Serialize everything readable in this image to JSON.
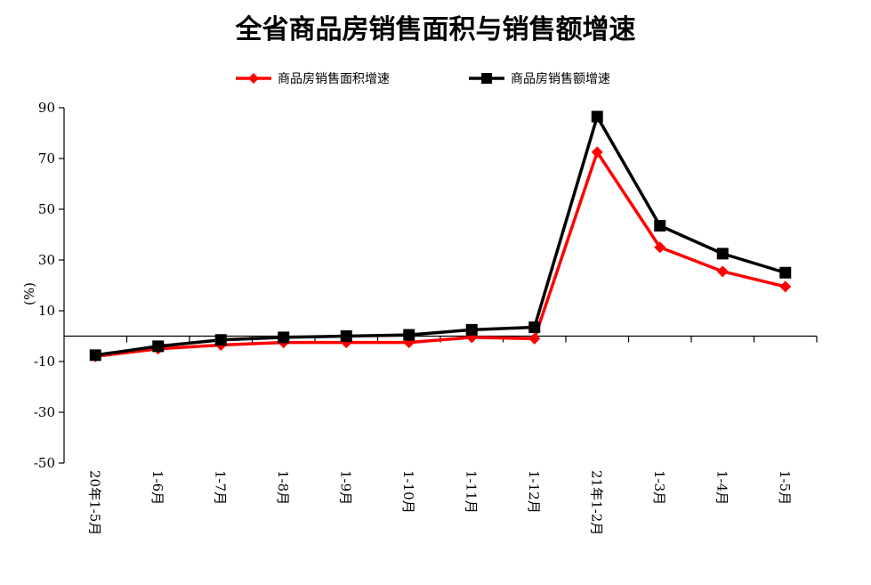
{
  "chart_data": {
    "type": "line",
    "title": "全省商品房销售面积与销售额增速",
    "ylabel": "(%)",
    "xlabel": "",
    "ylim": [
      -50,
      90
    ],
    "yticks": [
      90,
      70,
      50,
      30,
      10,
      -10,
      -30,
      -50
    ],
    "categories": [
      "20年1-5月",
      "1-6月",
      "1-7月",
      "1-8月",
      "1-9月",
      "1-10月",
      "1-11月",
      "1-12月",
      "21年1-2月",
      "1-3月",
      "1-4月",
      "1-5月"
    ],
    "legend_position": "top",
    "grid": false,
    "series": [
      {
        "name": "商品房销售面积增速",
        "color": "#ff0000",
        "marker": "diamond",
        "values": [
          -8,
          -5,
          -3.5,
          -2.5,
          -2.5,
          -2.5,
          -0.5,
          -1,
          72.5,
          35,
          25.5,
          19.5
        ]
      },
      {
        "name": "商品房销售额增速",
        "color": "#000000",
        "marker": "square",
        "values": [
          -7.5,
          -4,
          -1.5,
          -0.5,
          0,
          0.5,
          2.5,
          3.5,
          86.5,
          43.5,
          32.5,
          25
        ]
      }
    ]
  }
}
